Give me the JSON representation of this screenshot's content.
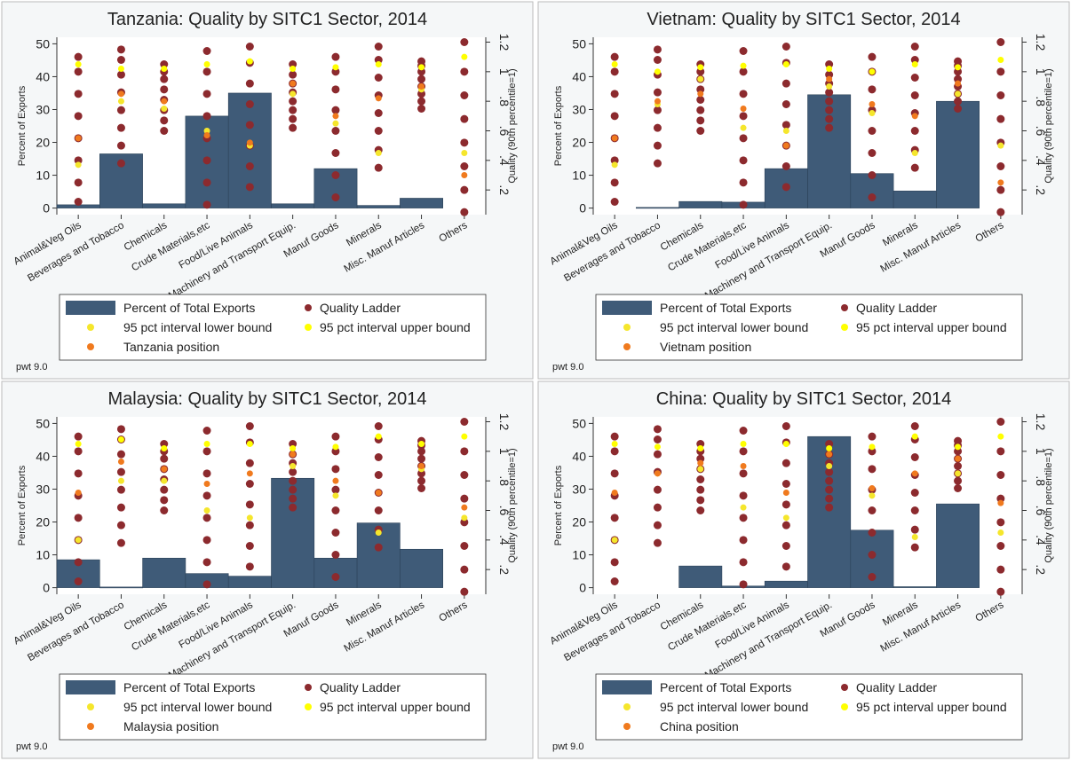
{
  "chart_data": [
    {
      "type": "bar",
      "title": "Tanzania: Quality by SITC1 Sector, 2014",
      "ylabel": "Percent of Exports",
      "y2label": "Quality (90th percentile=1)",
      "note": "pwt 9.0",
      "categories": [
        "Animal&Veg Oils",
        "Beverages and Tobacco",
        "Chemicals",
        "Crude Materials,etc",
        "Food/Live Animals",
        "Machinery and Transport Equip.",
        "Manuf Goods",
        "Minerals",
        "Misc. Manuf Articles",
        "Others"
      ],
      "ylim": [
        -2,
        52
      ],
      "yticks": [
        0,
        10,
        20,
        30,
        40,
        50
      ],
      "y2lim": [
        0.033,
        1.233
      ],
      "y2ticks": [
        {
          "value": 0.2,
          "label": ".2"
        },
        {
          "value": 0.4,
          "label": ".4"
        },
        {
          "value": 0.6,
          "label": ".6"
        },
        {
          "value": 0.8,
          "label": ".8"
        },
        1,
        1.2
      ],
      "grid": false,
      "series": [
        {
          "name": "Percent of Total Exports",
          "color": "#3f5b78",
          "values": [
            1,
            16.5,
            1.3,
            28,
            35,
            1.3,
            12,
            0.8,
            3,
            null
          ]
        },
        {
          "name": "Quality Ladder",
          "color": "#8c2a2e",
          "axis": "y2",
          "values": [
            [
              0.12,
              0.25,
              0.4,
              0.55,
              0.7,
              0.85,
              1.0,
              1.1
            ],
            [
              0.38,
              0.5,
              0.62,
              0.74,
              0.86,
              0.98,
              1.08,
              1.15
            ],
            [
              0.6,
              0.67,
              0.74,
              0.81,
              0.88,
              0.95,
              1.0,
              1.05
            ],
            [
              0.1,
              0.25,
              0.4,
              0.55,
              0.7,
              0.85,
              1.0,
              1.14
            ],
            [
              0.22,
              0.36,
              0.5,
              0.64,
              0.78,
              0.92,
              1.06,
              1.17
            ],
            [
              0.62,
              0.68,
              0.74,
              0.8,
              0.86,
              0.92,
              0.98,
              1.05
            ],
            [
              0.15,
              0.3,
              0.45,
              0.6,
              0.74,
              0.88,
              1.0,
              1.1
            ],
            [
              0.35,
              0.47,
              0.6,
              0.72,
              0.84,
              0.96,
              1.08,
              1.17
            ],
            [
              0.75,
              0.8,
              0.85,
              0.9,
              0.95,
              1.0,
              1.04,
              1.07
            ],
            [
              0.05,
              0.2,
              0.36,
              0.52,
              0.68,
              0.84,
              1.0,
              1.2
            ]
          ]
        },
        {
          "name": "95 pct interval lower bound",
          "color": "#f5e62c",
          "axis": "y2",
          "values": [
            0.37,
            0.8,
            0.75,
            0.6,
            0.5,
            0.85,
            0.65,
            0.45,
            0.88,
            0.45
          ]
        },
        {
          "name": "95 pct interval upper bound",
          "color": "#ffff00",
          "axis": "y2",
          "values": [
            1.05,
            1.02,
            1.02,
            1.05,
            1.07,
            1.02,
            1.03,
            1.05,
            1.03,
            1.1
          ]
        },
        {
          "name": "Tanzania position",
          "color": "#f07a1e",
          "axis": "y2",
          "values": [
            0.55,
            0.85,
            0.8,
            0.57,
            0.52,
            0.92,
            0.7,
            0.82,
            0.9,
            0.3
          ]
        }
      ]
    },
    {
      "type": "bar",
      "title": "Vietnam: Quality by SITC1 Sector, 2014",
      "ylabel": "Percent of Exports",
      "y2label": "Quality (90th percentile=1)",
      "note": "pwt 9.0",
      "categories": [
        "Animal&Veg Oils",
        "Beverages and Tobacco",
        "Chemicals",
        "Crude Materials,etc",
        "Food/Live Animals",
        "Machinery and Transport Equip.",
        "Manuf Goods",
        "Minerals",
        "Misc. Manuf Articles",
        "Others"
      ],
      "ylim": [
        -2,
        52
      ],
      "yticks": [
        0,
        10,
        20,
        30,
        40,
        50
      ],
      "y2lim": [
        0.033,
        1.233
      ],
      "y2ticks": [
        {
          "value": 0.2,
          "label": ".2"
        },
        {
          "value": 0.4,
          "label": ".4"
        },
        {
          "value": 0.6,
          "label": ".6"
        },
        {
          "value": 0.8,
          "label": ".8"
        },
        1,
        1.2
      ],
      "grid": false,
      "series": [
        {
          "name": "Percent of Total Exports",
          "color": "#3f5b78",
          "values": [
            null,
            0.2,
            2,
            1.8,
            12,
            34.5,
            10.5,
            5.2,
            32.5,
            null
          ]
        },
        {
          "name": "Quality Ladder",
          "color": "#8c2a2e",
          "axis": "y2",
          "values": [
            [
              0.12,
              0.25,
              0.4,
              0.55,
              0.7,
              0.85,
              1.0,
              1.1
            ],
            [
              0.38,
              0.5,
              0.62,
              0.74,
              0.86,
              0.98,
              1.08,
              1.15
            ],
            [
              0.6,
              0.67,
              0.74,
              0.81,
              0.88,
              0.95,
              1.0,
              1.05
            ],
            [
              0.1,
              0.25,
              0.4,
              0.55,
              0.7,
              0.85,
              1.0,
              1.14
            ],
            [
              0.22,
              0.36,
              0.5,
              0.64,
              0.78,
              0.92,
              1.06,
              1.17
            ],
            [
              0.62,
              0.68,
              0.74,
              0.8,
              0.86,
              0.92,
              0.98,
              1.05
            ],
            [
              0.15,
              0.3,
              0.45,
              0.6,
              0.74,
              0.88,
              1.0,
              1.1
            ],
            [
              0.35,
              0.47,
              0.6,
              0.72,
              0.84,
              0.96,
              1.08,
              1.17
            ],
            [
              0.75,
              0.8,
              0.85,
              0.9,
              0.95,
              1.0,
              1.04,
              1.07
            ],
            [
              0.05,
              0.2,
              0.36,
              0.52,
              0.68,
              0.84,
              1.0,
              1.2
            ]
          ]
        },
        {
          "name": "95 pct interval lower bound",
          "color": "#f5e62c",
          "axis": "y2",
          "values": [
            0.37,
            0.78,
            0.95,
            0.62,
            0.6,
            0.9,
            0.72,
            0.45,
            0.85,
            0.5
          ]
        },
        {
          "name": "95 pct interval upper bound",
          "color": "#ffff00",
          "axis": "y2",
          "values": [
            1.05,
            1.0,
            1.03,
            1.04,
            1.05,
            1.02,
            1.0,
            1.05,
            1.03,
            1.08
          ]
        },
        {
          "name": "Vietnam position",
          "color": "#f07a1e",
          "axis": "y2",
          "values": [
            0.55,
            0.8,
            0.85,
            0.75,
            0.5,
            0.95,
            0.78,
            0.7,
            0.92,
            0.25
          ]
        }
      ]
    },
    {
      "type": "bar",
      "title": "Malaysia: Quality by SITC1 Sector, 2014",
      "ylabel": "Percent of Exports",
      "y2label": "Quality (90th percentile=1)",
      "note": "pwt 9.0",
      "categories": [
        "Animal&Veg Oils",
        "Beverages and Tobacco",
        "Chemicals",
        "Crude Materials,etc",
        "Food/Live Animals",
        "Machinery and Transport Equip.",
        "Manuf Goods",
        "Minerals",
        "Misc. Manuf Articles",
        "Others"
      ],
      "ylim": [
        -2,
        52
      ],
      "yticks": [
        0,
        10,
        20,
        30,
        40,
        50
      ],
      "y2lim": [
        0.033,
        1.233
      ],
      "y2ticks": [
        {
          "value": 0.2,
          "label": ".2"
        },
        {
          "value": 0.4,
          "label": ".4"
        },
        {
          "value": 0.6,
          "label": ".6"
        },
        {
          "value": 0.8,
          "label": ".8"
        },
        1,
        1.2
      ],
      "grid": false,
      "series": [
        {
          "name": "Percent of Total Exports",
          "color": "#3f5b78",
          "values": [
            8.5,
            0.2,
            9,
            4.3,
            3.5,
            33.3,
            9,
            19.7,
            11.7,
            null
          ]
        },
        {
          "name": "Quality Ladder",
          "color": "#8c2a2e",
          "axis": "y2",
          "values": [
            [
              0.12,
              0.25,
              0.4,
              0.55,
              0.7,
              0.85,
              1.0,
              1.1
            ],
            [
              0.38,
              0.5,
              0.62,
              0.74,
              0.86,
              0.98,
              1.08,
              1.15
            ],
            [
              0.6,
              0.67,
              0.74,
              0.81,
              0.88,
              0.95,
              1.0,
              1.05
            ],
            [
              0.1,
              0.25,
              0.4,
              0.55,
              0.7,
              0.85,
              1.0,
              1.14
            ],
            [
              0.22,
              0.36,
              0.5,
              0.64,
              0.78,
              0.92,
              1.06,
              1.17
            ],
            [
              0.62,
              0.68,
              0.74,
              0.8,
              0.86,
              0.92,
              0.98,
              1.05
            ],
            [
              0.15,
              0.3,
              0.45,
              0.6,
              0.74,
              0.88,
              1.0,
              1.1
            ],
            [
              0.35,
              0.47,
              0.6,
              0.72,
              0.84,
              0.96,
              1.08,
              1.17
            ],
            [
              0.75,
              0.8,
              0.85,
              0.9,
              0.95,
              1.0,
              1.04,
              1.07
            ],
            [
              0.05,
              0.2,
              0.36,
              0.52,
              0.68,
              0.84,
              1.0,
              1.2
            ]
          ]
        },
        {
          "name": "95 pct interval lower bound",
          "color": "#f5e62c",
          "axis": "y2",
          "values": [
            0.4,
            0.8,
            0.8,
            0.6,
            0.55,
            0.9,
            0.7,
            0.45,
            0.88,
            0.55
          ]
        },
        {
          "name": "95 pct interval upper bound",
          "color": "#ffff00",
          "axis": "y2",
          "values": [
            1.05,
            1.08,
            1.02,
            1.05,
            1.05,
            1.02,
            1.03,
            1.1,
            1.05,
            1.1
          ]
        },
        {
          "name": "Malaysia position",
          "color": "#f07a1e",
          "axis": "y2",
          "values": [
            0.72,
            0.93,
            0.88,
            0.78,
            0.85,
            0.98,
            0.8,
            0.72,
            0.9,
            0.62
          ]
        }
      ]
    },
    {
      "type": "bar",
      "title": "China: Quality by SITC1 Sector, 2014",
      "ylabel": "Percent of Exports",
      "y2label": "Quality (90th percentile=1)",
      "note": "pwt 9.0",
      "categories": [
        "Animal&Veg Oils",
        "Beverages and Tobacco",
        "Chemicals",
        "Crude Materials,etc",
        "Food/Live Animals",
        "Machinery and Transport Equip.",
        "Manuf Goods",
        "Minerals",
        "Misc. Manuf Articles",
        "Others"
      ],
      "ylim": [
        -2,
        52
      ],
      "yticks": [
        0,
        10,
        20,
        30,
        40,
        50
      ],
      "y2lim": [
        0.033,
        1.233
      ],
      "y2ticks": [
        {
          "value": 0.2,
          "label": ".2"
        },
        {
          "value": 0.4,
          "label": ".4"
        },
        {
          "value": 0.6,
          "label": ".6"
        },
        {
          "value": 0.8,
          "label": ".8"
        },
        1,
        1.2
      ],
      "grid": false,
      "series": [
        {
          "name": "Percent of Total Exports",
          "color": "#3f5b78",
          "values": [
            null,
            null,
            6.6,
            0.5,
            2,
            46,
            17.5,
            0.3,
            25.5,
            null
          ]
        },
        {
          "name": "Quality Ladder",
          "color": "#8c2a2e",
          "axis": "y2",
          "values": [
            [
              0.12,
              0.25,
              0.4,
              0.55,
              0.7,
              0.85,
              1.0,
              1.1
            ],
            [
              0.38,
              0.5,
              0.62,
              0.74,
              0.86,
              0.98,
              1.08,
              1.15
            ],
            [
              0.6,
              0.67,
              0.74,
              0.81,
              0.88,
              0.95,
              1.0,
              1.05
            ],
            [
              0.1,
              0.25,
              0.4,
              0.55,
              0.7,
              0.85,
              1.0,
              1.14
            ],
            [
              0.22,
              0.36,
              0.5,
              0.64,
              0.78,
              0.92,
              1.06,
              1.17
            ],
            [
              0.62,
              0.68,
              0.74,
              0.8,
              0.86,
              0.92,
              0.98,
              1.05
            ],
            [
              0.15,
              0.3,
              0.45,
              0.6,
              0.74,
              0.88,
              1.0,
              1.1
            ],
            [
              0.35,
              0.47,
              0.6,
              0.72,
              0.84,
              0.96,
              1.08,
              1.17
            ],
            [
              0.75,
              0.8,
              0.85,
              0.9,
              0.95,
              1.0,
              1.04,
              1.07
            ],
            [
              0.05,
              0.2,
              0.36,
              0.52,
              0.68,
              0.84,
              1.0,
              1.2
            ]
          ]
        },
        {
          "name": "95 pct interval lower bound",
          "color": "#f5e62c",
          "axis": "y2",
          "values": [
            0.4,
            0.85,
            0.88,
            0.62,
            0.55,
            0.9,
            0.7,
            0.42,
            0.85,
            0.45
          ]
        },
        {
          "name": "95 pct interval upper bound",
          "color": "#ffff00",
          "axis": "y2",
          "values": [
            1.05,
            1.03,
            1.02,
            1.05,
            1.05,
            1.02,
            1.03,
            1.1,
            1.03,
            1.1
          ]
        },
        {
          "name": "China position",
          "color": "#f07a1e",
          "axis": "y2",
          "values": [
            0.72,
            0.85,
            0.92,
            0.9,
            0.72,
            0.98,
            0.75,
            0.85,
            0.95,
            0.65
          ]
        }
      ]
    }
  ]
}
